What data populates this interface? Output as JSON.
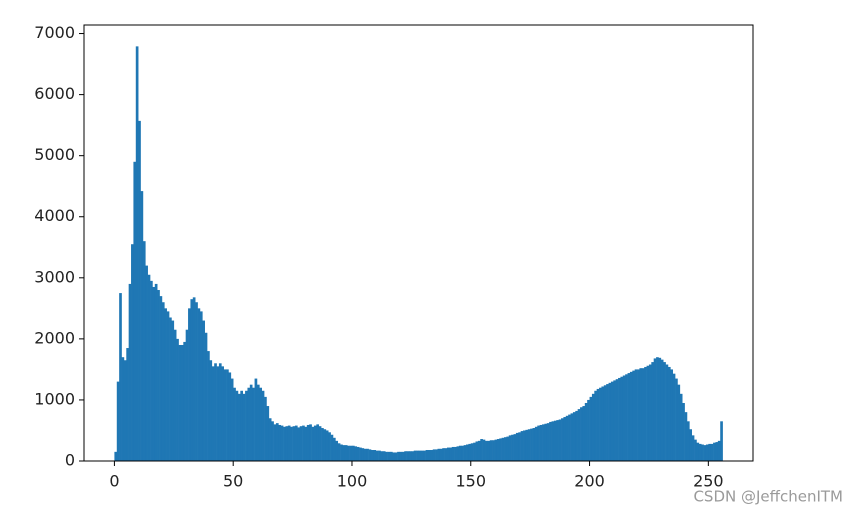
{
  "chart_data": {
    "type": "histogram",
    "watermark": "CSDN @JeffchenITM",
    "color": "#1f77b4",
    "xlim": [
      -12.8,
      268.8
    ],
    "ylim": [
      0,
      7140
    ],
    "xticks": [
      0,
      50,
      100,
      150,
      200,
      250
    ],
    "yticks": [
      0,
      1000,
      2000,
      3000,
      4000,
      5000,
      6000,
      7000
    ],
    "bins": [
      0,
      1,
      2,
      3,
      4,
      5,
      6,
      7,
      8,
      9,
      10,
      11,
      12,
      13,
      14,
      15,
      16,
      17,
      18,
      19,
      20,
      21,
      22,
      23,
      24,
      25,
      26,
      27,
      28,
      29,
      30,
      31,
      32,
      33,
      34,
      35,
      36,
      37,
      38,
      39,
      40,
      41,
      42,
      43,
      44,
      45,
      46,
      47,
      48,
      49,
      50,
      51,
      52,
      53,
      54,
      55,
      56,
      57,
      58,
      59,
      60,
      61,
      62,
      63,
      64,
      65,
      66,
      67,
      68,
      69,
      70,
      71,
      72,
      73,
      74,
      75,
      76,
      77,
      78,
      79,
      80,
      81,
      82,
      83,
      84,
      85,
      86,
      87,
      88,
      89,
      90,
      91,
      92,
      93,
      94,
      95,
      96,
      97,
      98,
      99,
      100,
      101,
      102,
      103,
      104,
      105,
      106,
      107,
      108,
      109,
      110,
      111,
      112,
      113,
      114,
      115,
      116,
      117,
      118,
      119,
      120,
      121,
      122,
      123,
      124,
      125,
      126,
      127,
      128,
      129,
      130,
      131,
      132,
      133,
      134,
      135,
      136,
      137,
      138,
      139,
      140,
      141,
      142,
      143,
      144,
      145,
      146,
      147,
      148,
      149,
      150,
      151,
      152,
      153,
      154,
      155,
      156,
      157,
      158,
      159,
      160,
      161,
      162,
      163,
      164,
      165,
      166,
      167,
      168,
      169,
      170,
      171,
      172,
      173,
      174,
      175,
      176,
      177,
      178,
      179,
      180,
      181,
      182,
      183,
      184,
      185,
      186,
      187,
      188,
      189,
      190,
      191,
      192,
      193,
      194,
      195,
      196,
      197,
      198,
      199,
      200,
      201,
      202,
      203,
      204,
      205,
      206,
      207,
      208,
      209,
      210,
      211,
      212,
      213,
      214,
      215,
      216,
      217,
      218,
      219,
      220,
      221,
      222,
      223,
      224,
      225,
      226,
      227,
      228,
      229,
      230,
      231,
      232,
      233,
      234,
      235,
      236,
      237,
      238,
      239,
      240,
      241,
      242,
      243,
      244,
      245,
      246,
      247,
      248,
      249,
      250,
      251,
      252,
      253,
      254,
      255,
      256
    ],
    "values": [
      150,
      1300,
      2750,
      1700,
      1650,
      1850,
      2900,
      3550,
      4900,
      6790,
      5570,
      4420,
      3600,
      3200,
      3050,
      2950,
      2850,
      2900,
      2800,
      2700,
      2600,
      2500,
      2450,
      2350,
      2300,
      2150,
      2000,
      1900,
      1900,
      1950,
      2150,
      2500,
      2650,
      2680,
      2600,
      2500,
      2450,
      2300,
      2100,
      1800,
      1650,
      1550,
      1600,
      1550,
      1600,
      1550,
      1500,
      1500,
      1450,
      1350,
      1200,
      1150,
      1100,
      1150,
      1100,
      1150,
      1200,
      1250,
      1200,
      1350,
      1250,
      1200,
      1150,
      1050,
      900,
      700,
      650,
      600,
      620,
      590,
      580,
      560,
      570,
      580,
      560,
      570,
      580,
      550,
      570,
      580,
      560,
      590,
      600,
      560,
      580,
      600,
      570,
      540,
      520,
      500,
      470,
      430,
      380,
      330,
      290,
      270,
      260,
      260,
      250,
      250,
      250,
      240,
      230,
      220,
      210,
      200,
      200,
      190,
      180,
      180,
      170,
      170,
      160,
      160,
      150,
      150,
      150,
      140,
      140,
      150,
      150,
      150,
      160,
      160,
      160,
      160,
      170,
      170,
      170,
      170,
      170,
      180,
      180,
      180,
      190,
      190,
      200,
      200,
      210,
      210,
      220,
      220,
      230,
      230,
      240,
      250,
      250,
      260,
      270,
      280,
      290,
      300,
      320,
      330,
      360,
      350,
      330,
      330,
      340,
      340,
      350,
      360,
      370,
      380,
      390,
      400,
      420,
      430,
      440,
      460,
      470,
      490,
      500,
      510,
      520,
      530,
      540,
      560,
      580,
      590,
      600,
      610,
      620,
      640,
      650,
      660,
      670,
      680,
      700,
      720,
      740,
      760,
      780,
      800,
      820,
      850,
      880,
      900,
      950,
      1000,
      1050,
      1100,
      1150,
      1180,
      1200,
      1220,
      1240,
      1260,
      1280,
      1300,
      1320,
      1340,
      1360,
      1380,
      1400,
      1420,
      1440,
      1460,
      1480,
      1500,
      1500,
      1520,
      1520,
      1540,
      1560,
      1580,
      1620,
      1680,
      1700,
      1690,
      1660,
      1620,
      1580,
      1540,
      1500,
      1430,
      1350,
      1250,
      1100,
      950,
      800,
      650,
      520,
      420,
      350,
      300,
      280,
      270,
      260,
      270,
      280,
      280,
      300,
      310,
      330,
      650
    ]
  }
}
